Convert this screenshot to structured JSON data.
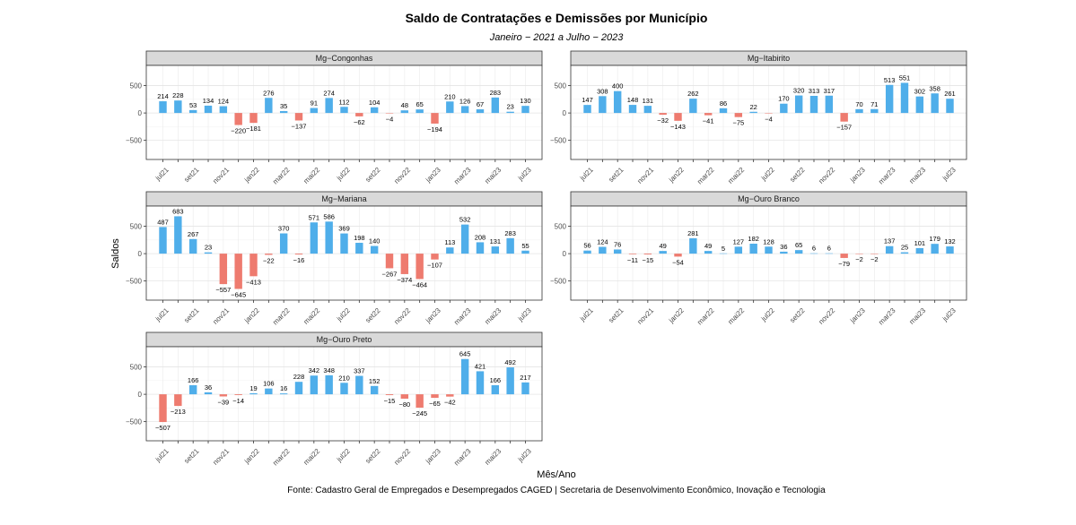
{
  "title": "Saldo de Contratações e Demissões por Município",
  "subtitle": "Janeiro − 2021 a Julho − 2023",
  "x_label": "Mês/Ano",
  "y_label": "Saldos",
  "caption": "Fonte: Cadastro Geral de Empregados e Desempregados CAGED | Secretaria de Desenvolvimento Econômico, Inovação e Tecnologia",
  "chart_data": [
    {
      "type": "bar",
      "title": "Mg−Congonhas",
      "categories": [
        "jul21",
        null,
        "set21",
        null,
        "nov21",
        null,
        "jan22",
        null,
        "mar22",
        null,
        "mai22",
        null,
        "jul22",
        null,
        "set22",
        null,
        "nov22",
        null,
        "jan23",
        null,
        "mar23",
        null,
        "mai23",
        null,
        "jul23"
      ],
      "values": [
        214,
        228,
        53,
        134,
        124,
        -220,
        -181,
        276,
        35,
        -137,
        91,
        274,
        112,
        -62,
        104,
        -4,
        48,
        65,
        -194,
        210,
        126,
        67,
        283,
        23,
        130
      ],
      "value_labels": [
        "214",
        "228",
        "53",
        "134",
        "124",
        "−220",
        "−181",
        "276",
        "35",
        "−137",
        "91",
        "274",
        "112",
        "−62",
        "104",
        "−4",
        "48",
        "65",
        "−194",
        "210",
        "126",
        "67",
        "283",
        "23",
        "130"
      ],
      "ylim": [
        -850,
        870
      ],
      "yticks": [
        {
          "value": -500,
          "label": "−500"
        },
        0,
        500
      ],
      "grid": true,
      "colors": {
        "positive": "#4FAEEA",
        "negative": "#EE7B6F"
      }
    },
    {
      "type": "bar",
      "title": "Mg−Itabirito",
      "categories": [
        "jul21",
        null,
        "set21",
        null,
        "nov21",
        null,
        "jan22",
        null,
        "mar22",
        null,
        "mai22",
        null,
        "jul22",
        null,
        "set22",
        null,
        "nov22",
        null,
        "jan23",
        null,
        "mar23",
        null,
        "mai23",
        null,
        "jul23"
      ],
      "values": [
        147,
        308,
        400,
        148,
        131,
        -32,
        -143,
        262,
        -41,
        86,
        -75,
        22,
        -4,
        170,
        320,
        313,
        317,
        -157,
        70,
        71,
        513,
        551,
        302,
        358,
        261
      ],
      "value_labels": [
        "147",
        "308",
        "400",
        "148",
        "131",
        "−32",
        "−143",
        "262",
        "−41",
        "86",
        "−75",
        "22",
        "−4",
        "170",
        "320",
        "313",
        "317",
        "−157",
        "70",
        "71",
        "513",
        "551",
        "302",
        "358",
        "261"
      ],
      "ylim": [
        -850,
        870
      ],
      "yticks": [
        {
          "value": -500,
          "label": "−500"
        },
        0,
        500
      ],
      "grid": true,
      "colors": {
        "positive": "#4FAEEA",
        "negative": "#EE7B6F"
      }
    },
    {
      "type": "bar",
      "title": "Mg−Mariana",
      "categories": [
        "jul21",
        null,
        "set21",
        null,
        "nov21",
        null,
        "jan22",
        null,
        "mar22",
        null,
        "mai22",
        null,
        "jul22",
        null,
        "set22",
        null,
        "nov22",
        null,
        "jan23",
        null,
        "mar23",
        null,
        "mai23",
        null,
        "jul23"
      ],
      "values": [
        487,
        683,
        267,
        23,
        -557,
        -645,
        -413,
        -22,
        370,
        -16,
        571,
        586,
        369,
        198,
        140,
        -267,
        -374,
        -464,
        -107,
        113,
        532,
        208,
        131,
        283,
        55
      ],
      "value_labels": [
        "487",
        "683",
        "267",
        "23",
        "−557",
        "−645",
        "−413",
        "−22",
        "370",
        "−16",
        "571",
        "586",
        "369",
        "198",
        "140",
        "−267",
        "−374",
        "−464",
        "−107",
        "113",
        "532",
        "208",
        "131",
        "283",
        "55"
      ],
      "ylim": [
        -850,
        870
      ],
      "yticks": [
        {
          "value": -500,
          "label": "−500"
        },
        0,
        500
      ],
      "grid": true,
      "colors": {
        "positive": "#4FAEEA",
        "negative": "#EE7B6F"
      }
    },
    {
      "type": "bar",
      "title": "Mg−Ouro Branco",
      "categories": [
        "jul21",
        null,
        "set21",
        null,
        "nov21",
        null,
        "jan22",
        null,
        "mar22",
        null,
        "mai22",
        null,
        "jul22",
        null,
        "set22",
        null,
        "nov22",
        null,
        "jan23",
        null,
        "mar23",
        null,
        "mai23",
        null,
        "jul23"
      ],
      "values": [
        56,
        124,
        76,
        -11,
        -15,
        49,
        -54,
        281,
        49,
        5,
        127,
        182,
        128,
        36,
        65,
        6,
        6,
        -79,
        -2,
        -2,
        137,
        25,
        101,
        179,
        132
      ],
      "value_labels": [
        "56",
        "124",
        "76",
        "−11",
        "−15",
        "49",
        "−54",
        "281",
        "49",
        "5",
        "127",
        "182",
        "128",
        "36",
        "65",
        "6",
        "6",
        "−79",
        "−2",
        "−2",
        "137",
        "25",
        "101",
        "179",
        "132"
      ],
      "ylim": [
        -850,
        870
      ],
      "yticks": [
        {
          "value": -500,
          "label": "−500"
        },
        0,
        500
      ],
      "grid": true,
      "colors": {
        "positive": "#4FAEEA",
        "negative": "#EE7B6F"
      }
    },
    {
      "type": "bar",
      "title": "Mg−Ouro Preto",
      "categories": [
        "jul21",
        null,
        "set21",
        null,
        "nov21",
        null,
        "jan22",
        null,
        "mar22",
        null,
        "mai22",
        null,
        "jul22",
        null,
        "set22",
        null,
        "nov22",
        null,
        "jan23",
        null,
        "mar23",
        null,
        "mai23",
        null,
        "jul23"
      ],
      "values": [
        -507,
        -213,
        166,
        36,
        -39,
        -14,
        19,
        106,
        16,
        228,
        342,
        348,
        210,
        337,
        152,
        -15,
        -80,
        -245,
        -65,
        -42,
        645,
        421,
        166,
        492,
        217
      ],
      "value_labels": [
        "−507",
        "−213",
        "166",
        "36",
        "−39",
        "−14",
        "19",
        "106",
        "16",
        "228",
        "342",
        "348",
        "210",
        "337",
        "152",
        "−15",
        "−80",
        "−245",
        "−65",
        "−42",
        "645",
        "421",
        "166",
        "492",
        "217"
      ],
      "ylim": [
        -850,
        870
      ],
      "yticks": [
        {
          "value": -500,
          "label": "−500"
        },
        0,
        500
      ],
      "grid": true,
      "colors": {
        "positive": "#4FAEEA",
        "negative": "#EE7B6F"
      }
    }
  ]
}
